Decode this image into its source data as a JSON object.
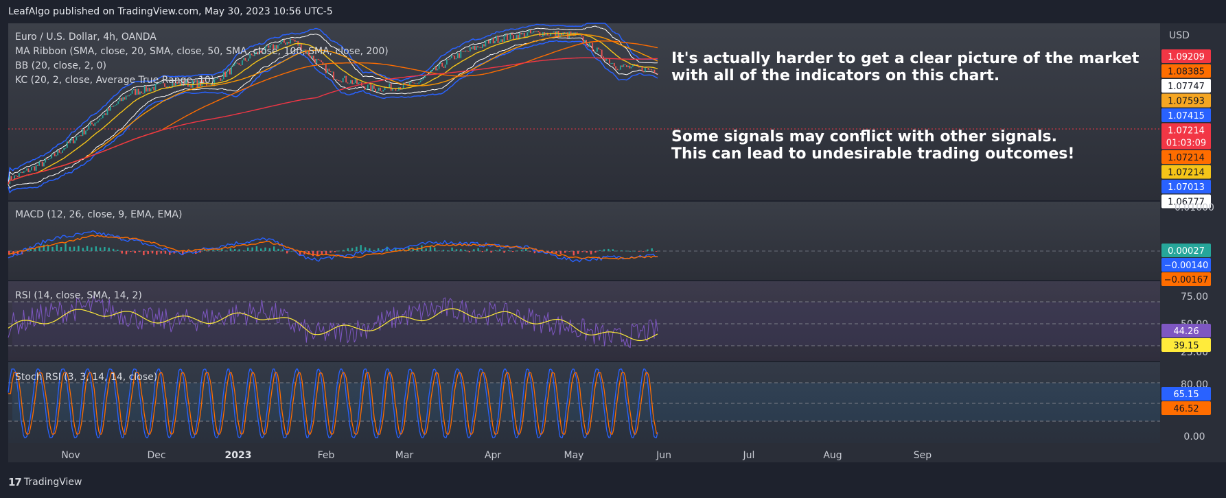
{
  "header": {
    "text": "LeafAlgo published on TradingView.com, May 30, 2023 10:56 UTC-5"
  },
  "brand": {
    "logo_glyph": "17",
    "name": "TradingView"
  },
  "colors": {
    "price_red": "#f23645",
    "price_orange": "#ff6d00",
    "price_white": "#ffffff",
    "price_gold": "#f5a623",
    "price_blue": "#2962ff",
    "macd_line": "#2962ff",
    "signal_line": "#ff6d00",
    "hist_up": "#26a69a",
    "hist_down": "#ef5350",
    "rsi": "#7e57c2",
    "rsi_ma": "#ffeb3b"
  },
  "annotations": {
    "line1": "It's actually harder to get a clear picture of the market",
    "line2": "with all of the indicators on this chart.",
    "line3": "Some signals may conflict with other signals.",
    "line4": "This can lead to undesirable trading outcomes!"
  },
  "chart_data": [
    {
      "type": "line",
      "pane": "price",
      "legend": [
        "Euro / U.S. Dollar, 4h, OANDA",
        "MA Ribbon (SMA, close, 20, SMA, close, 50, SMA, close, 100, SMA, close, 200)",
        "BB (20, close, 2, 0)",
        "KC (20, 2, close, Average True Range, 10)"
      ],
      "currency": "USD",
      "x_ticks": [
        "Nov",
        "Dec",
        "2023",
        "Feb",
        "Mar",
        "Apr",
        "May",
        "Jun",
        "Jul",
        "Aug",
        "Sep"
      ],
      "x": [
        "2022-10-24",
        "2022-11-07",
        "2022-11-21",
        "2022-12-05",
        "2022-12-19",
        "2023-01-02",
        "2023-01-16",
        "2023-01-30",
        "2023-02-13",
        "2023-02-27",
        "2023-03-13",
        "2023-03-27",
        "2023-04-10",
        "2023-04-24",
        "2023-05-08",
        "2023-05-22",
        "2023-05-30"
      ],
      "close": [
        0.99,
        1.005,
        1.03,
        1.055,
        1.062,
        1.062,
        1.083,
        1.095,
        1.068,
        1.058,
        1.061,
        1.082,
        1.095,
        1.1,
        1.098,
        1.075,
        1.0721
      ],
      "axis_labels": [
        {
          "value": "1.09209",
          "color": "#f23645"
        },
        {
          "value": "1.08385",
          "color": "#ff6d00"
        },
        {
          "value": "1.07747",
          "color": "#ffffff"
        },
        {
          "value": "1.07593",
          "color": "#f5a623"
        },
        {
          "value": "1.07415",
          "color": "#2962ff"
        },
        {
          "value": "1.07214",
          "color": "#f23645",
          "countdown": "01:03:09"
        },
        {
          "value": "1.07214",
          "color": "#ff6d00"
        },
        {
          "value": "1.07214",
          "color": "#f5c518"
        },
        {
          "value": "1.07013",
          "color": "#2962ff"
        },
        {
          "value": "1.06777",
          "color": "#ffffff"
        }
      ]
    },
    {
      "type": "line",
      "pane": "macd",
      "legend": "MACD (12, 26, close, 9, EMA, EMA)",
      "y_ticks": [
        "0.01000"
      ],
      "series": [
        {
          "name": "MACD",
          "values": [
            -0.002,
            0.004,
            0.006,
            0.003,
            -0.001,
            0.002,
            0.004,
            -0.003,
            -0.001,
            0.001,
            0.003,
            0.002,
            0.001,
            -0.003,
            -0.002,
            -0.0014
          ]
        },
        {
          "name": "Signal",
          "values": [
            -0.001,
            0.002,
            0.005,
            0.004,
            0.0,
            0.001,
            0.003,
            -0.001,
            -0.002,
            0.0,
            0.002,
            0.002,
            0.001,
            -0.002,
            -0.0025,
            -0.00167
          ]
        }
      ],
      "axis_labels": [
        {
          "value": "0.00027",
          "color": "#26a69a"
        },
        {
          "value": "−0.00140",
          "color": "#2962ff"
        },
        {
          "value": "−0.00167",
          "color": "#ff6d00"
        }
      ]
    },
    {
      "type": "line",
      "pane": "rsi",
      "legend": "RSI (14, close, SMA, 14, 2)",
      "y_ticks": [
        "75.00",
        "50.00",
        "25.00"
      ],
      "levels": [
        70,
        50,
        30
      ],
      "series": [
        {
          "name": "RSI",
          "values": [
            48,
            60,
            66,
            55,
            52,
            57,
            62,
            40,
            44,
            56,
            64,
            60,
            55,
            47,
            36,
            44.26
          ]
        },
        {
          "name": "RSI MA",
          "values": [
            46,
            55,
            62,
            56,
            53,
            55,
            58,
            44,
            45,
            52,
            60,
            59,
            55,
            48,
            38,
            39.15
          ]
        }
      ],
      "axis_labels": [
        {
          "value": "44.26",
          "color": "#7e57c2"
        },
        {
          "value": "39.15",
          "color": "#ffeb3b"
        }
      ]
    },
    {
      "type": "line",
      "pane": "stoch",
      "legend": "Stoch RSI (3, 3, 14, 14, close)",
      "y_ticks": [
        "80.00",
        "0.00"
      ],
      "levels": [
        80,
        50,
        20
      ],
      "axis_labels": [
        {
          "value": "65.15",
          "color": "#2962ff"
        },
        {
          "value": "46.52",
          "color": "#ff6d00"
        }
      ]
    }
  ]
}
